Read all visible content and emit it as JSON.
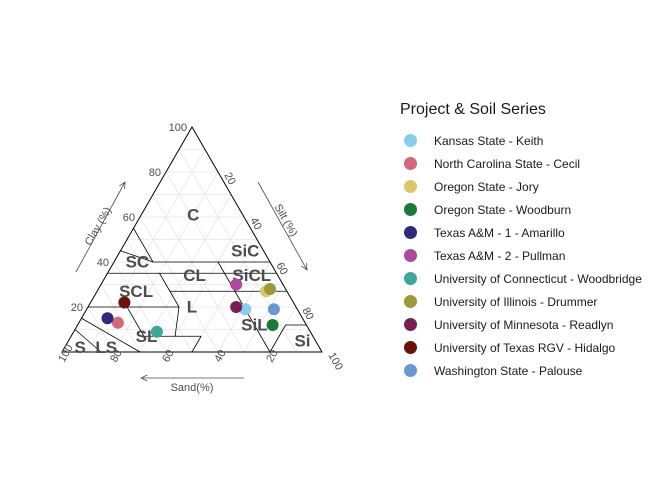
{
  "chart_data": {
    "type": "scatter",
    "subtype": "soil-texture-triangle",
    "axes": {
      "clay": {
        "label": "Clay (%)",
        "ticks": [
          20,
          40,
          60,
          80,
          100
        ]
      },
      "silt": {
        "label": "Silt (%)",
        "ticks": [
          20,
          40,
          60,
          80,
          100
        ]
      },
      "sand": {
        "label": "Sand(%)",
        "ticks": [
          20,
          40,
          60,
          80,
          100
        ]
      }
    },
    "grid": true,
    "legend_position": "right",
    "legend_title": "Project & Soil Series",
    "region_labels": [
      "C",
      "SiC",
      "SC",
      "CL",
      "SiCL",
      "SCL",
      "L",
      "SiL",
      "SL",
      "LS",
      "S",
      "Si"
    ],
    "series": [
      {
        "name": "Kansas State - Keith",
        "color": "#87CEEB",
        "sand": 20,
        "silt": 61,
        "clay": 19
      },
      {
        "name": "North Carolina State - Cecil",
        "color": "#D4687A",
        "sand": 72,
        "silt": 15,
        "clay": 13
      },
      {
        "name": "Oregon State - Jory",
        "color": "#D9C86E",
        "sand": 8,
        "silt": 65,
        "clay": 27
      },
      {
        "name": "Oregon State - Woodburn",
        "color": "#1A7A3A",
        "sand": 13,
        "silt": 75,
        "clay": 12
      },
      {
        "name": "Texas A&M - 1 - Amarillo",
        "color": "#2E2A7E",
        "sand": 75,
        "silt": 10,
        "clay": 15
      },
      {
        "name": "Texas A&M - 2 - Pullman",
        "color": "#B0489E",
        "sand": 18,
        "silt": 52,
        "clay": 30
      },
      {
        "name": "University of Connecticut - Woodbridge",
        "color": "#3EA898",
        "sand": 59,
        "silt": 32,
        "clay": 9
      },
      {
        "name": "University of Illinois - Drummer",
        "color": "#9C9A38",
        "sand": 6,
        "silt": 66,
        "clay": 28
      },
      {
        "name": "University of Minnesota - Readlyn",
        "color": "#7A1F55",
        "sand": 23,
        "silt": 57,
        "clay": 20
      },
      {
        "name": "University of Texas RGV - Hidalgo",
        "color": "#6B1208",
        "sand": 65,
        "silt": 13,
        "clay": 22
      },
      {
        "name": "Washington State - Palouse",
        "color": "#6A97D2",
        "sand": 9,
        "silt": 72,
        "clay": 19
      }
    ]
  }
}
